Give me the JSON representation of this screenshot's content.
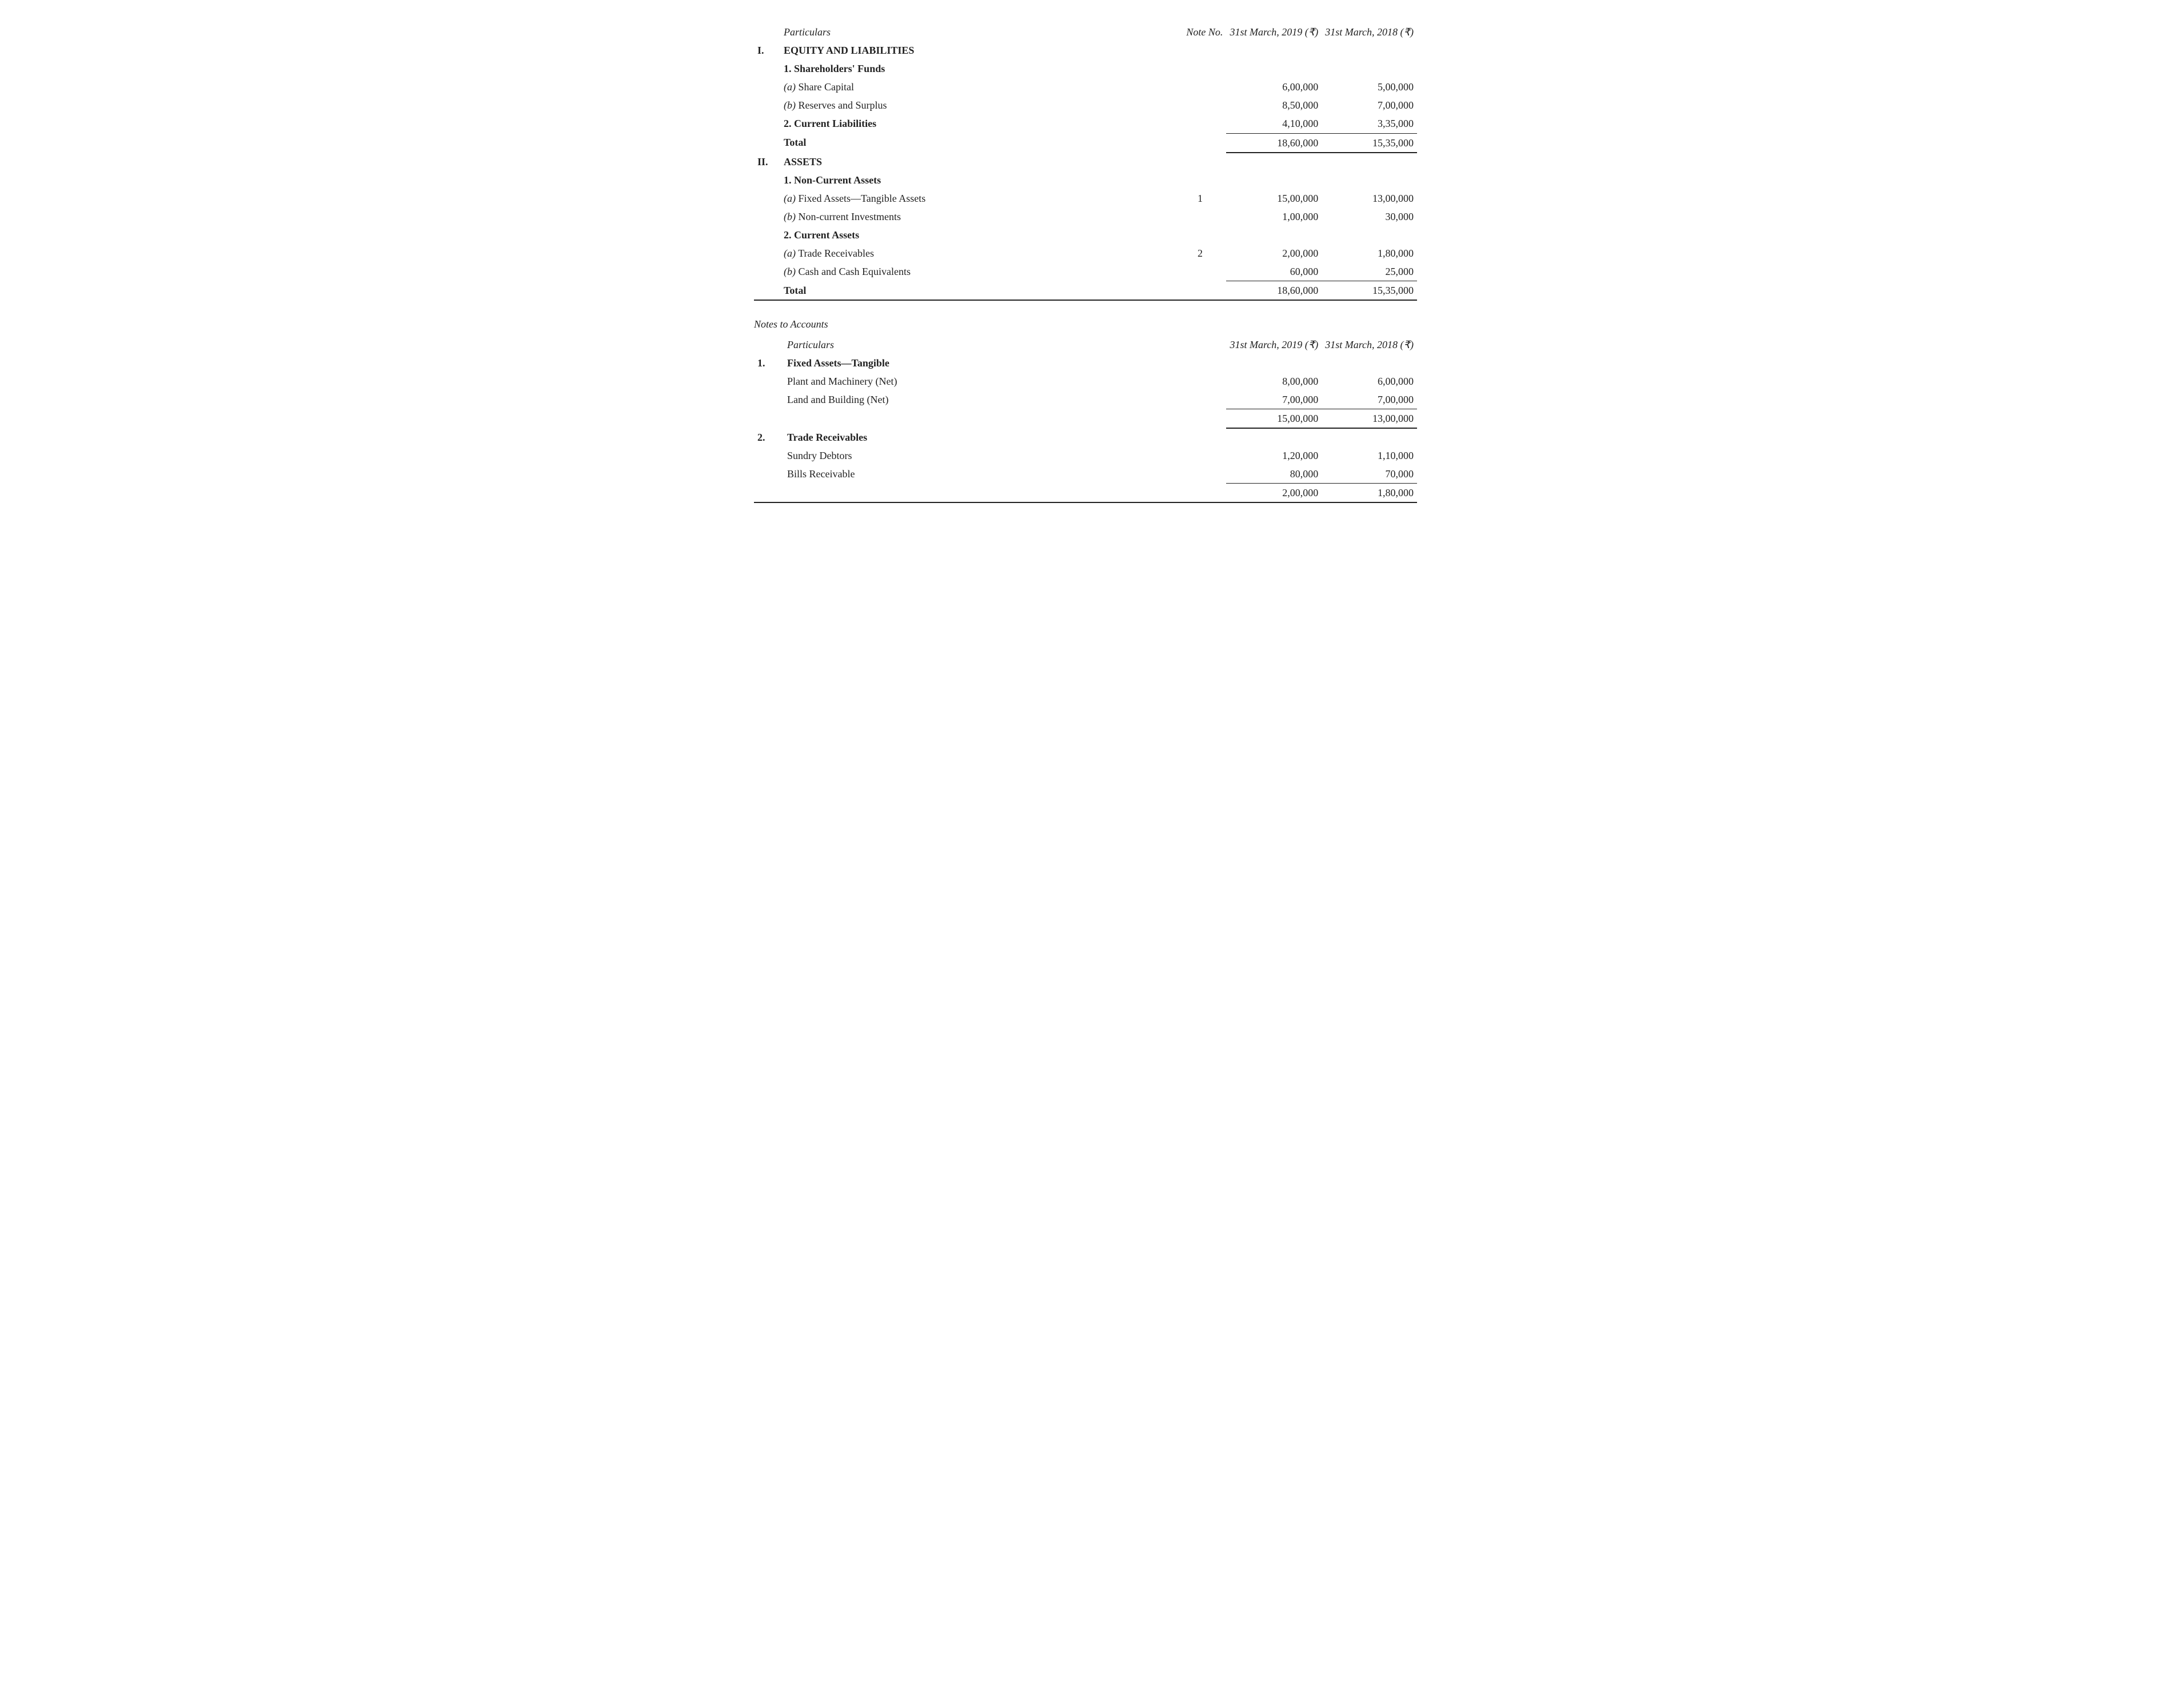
{
  "balance": {
    "header": {
      "particulars": "Particulars",
      "noteNo": "Note No.",
      "col1": "31st March,\n2019 (₹)",
      "col2": "31st March,\n2018 (₹)"
    },
    "sections": {
      "equity": {
        "roman": "I.",
        "title": "EQUITY AND LIABILITIES"
      },
      "assets": {
        "roman": "II.",
        "title": "ASSETS"
      }
    },
    "rows": {
      "shareholdersFunds": {
        "num": "1.",
        "label": "Shareholders' Funds"
      },
      "shareCapital": {
        "sub": "(a)",
        "label": "Share Capital",
        "v1": "6,00,000",
        "v2": "5,00,000"
      },
      "reservesSurplus": {
        "sub": "(b)",
        "label": "Reserves and Surplus",
        "v1": "8,50,000",
        "v2": "7,00,000"
      },
      "currentLiab": {
        "num": "2.",
        "label": "Current Liabilities",
        "v1": "4,10,000",
        "v2": "3,35,000"
      },
      "totalEquity": {
        "label": "Total",
        "v1": "18,60,000",
        "v2": "15,35,000"
      },
      "nonCurrentAssets": {
        "num": "1.",
        "label": "Non-Current Assets"
      },
      "fixedTangible": {
        "sub": "(a)",
        "label": "Fixed Assets—Tangible Assets",
        "note": "1",
        "v1": "15,00,000",
        "v2": "13,00,000"
      },
      "nonCurInvest": {
        "sub": "(b)",
        "label": "Non-current Investments",
        "v1": "1,00,000",
        "v2": "30,000"
      },
      "currentAssets": {
        "num": "2.",
        "label": "Current Assets"
      },
      "tradeRecv": {
        "sub": "(a)",
        "label": "Trade Receivables",
        "note": "2",
        "v1": "2,00,000",
        "v2": "1,80,000"
      },
      "cashEquiv": {
        "sub": "(b)",
        "label": "Cash and Cash Equivalents",
        "v1": "60,000",
        "v2": "25,000"
      },
      "totalAssets": {
        "label": "Total",
        "v1": "18,60,000",
        "v2": "15,35,000"
      }
    }
  },
  "notes": {
    "heading": "Notes to Accounts",
    "header": {
      "particulars": "Particulars",
      "col1": "31st March,\n2019 (₹)",
      "col2": "31st March,\n2018 (₹)"
    },
    "groups": {
      "fixedAssets": {
        "idx": "1.",
        "title": "Fixed Assets—Tangible",
        "rows": {
          "plantMachinery": {
            "label": "Plant and Machinery (Net)",
            "v1": "8,00,000",
            "v2": "6,00,000"
          },
          "landBuilding": {
            "label": "Land and Building (Net)",
            "v1": "7,00,000",
            "v2": "7,00,000"
          }
        },
        "total": {
          "v1": "15,00,000",
          "v2": "13,00,000"
        }
      },
      "tradeReceivables": {
        "idx": "2.",
        "title": "Trade Receivables",
        "rows": {
          "sundryDebtors": {
            "label": "Sundry Debtors",
            "v1": "1,20,000",
            "v2": "1,10,000"
          },
          "billsReceivable": {
            "label": "Bills Receivable",
            "v1": "80,000",
            "v2": "70,000"
          }
        },
        "total": {
          "v1": "2,00,000",
          "v2": "1,80,000"
        }
      }
    }
  }
}
